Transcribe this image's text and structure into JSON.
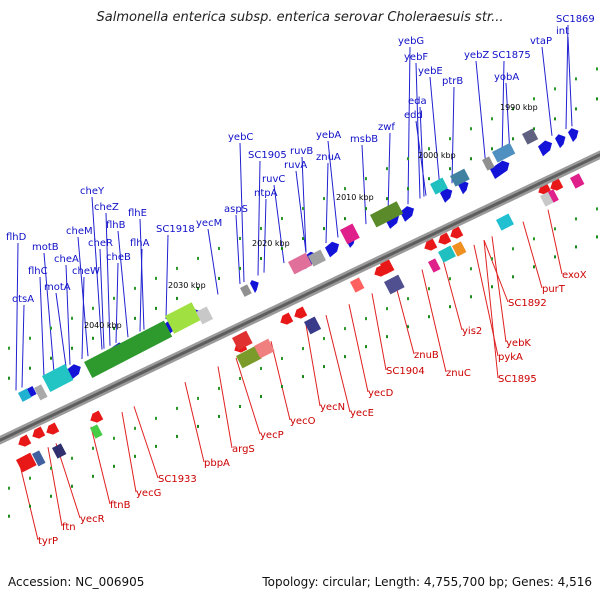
{
  "header": {
    "title": "Salmonella enterica subsp. enterica serovar Choleraesuis str..."
  },
  "footer": {
    "accession": "Accession: NC_006905",
    "summary": "Topology: circular; Length: 4,755,700 bp; Genes: 4,516"
  },
  "map": {
    "colors": {
      "top_label": "#1010c8",
      "bottom_label": "#cc0000",
      "backbone": "#8a8a8a",
      "dot": "#1a8a1a"
    },
    "kbp_markers": [
      "1990 kbp",
      "2000 kbp",
      "2010 kbp",
      "2020 kbp",
      "2030 kbp",
      "2040 kbp"
    ],
    "top_labels": [
      "SC1869",
      "int",
      "vtaP",
      "SC1875",
      "yobA",
      "yebZ",
      "yebG",
      "yebF",
      "yebE",
      "ptrB",
      "eda",
      "edd",
      "zwf",
      "msbB",
      "yebA",
      "znuA",
      "ruvB",
      "ruvA",
      "SC1905",
      "yebC",
      "ruvC",
      "ntpA",
      "aspS",
      "yecM",
      "SC1918",
      "flhE",
      "flhB",
      "flhA",
      "cheZ",
      "cheY",
      "cheB",
      "cheR",
      "cheM",
      "cheW",
      "cheA",
      "motB",
      "flhD",
      "flhC",
      "motA",
      "otsA"
    ],
    "bottom_labels": [
      "exoX",
      "purT",
      "SC1892",
      "yebK",
      "yis2",
      "pykA",
      "SC1895",
      "znuB",
      "znuC",
      "SC1904",
      "yecD",
      "yecE",
      "yecN",
      "yecO",
      "yecP",
      "argS",
      "pbpA",
      "SC1933",
      "yecG",
      "ftnB",
      "yecR",
      "ftn",
      "tyrP"
    ]
  }
}
